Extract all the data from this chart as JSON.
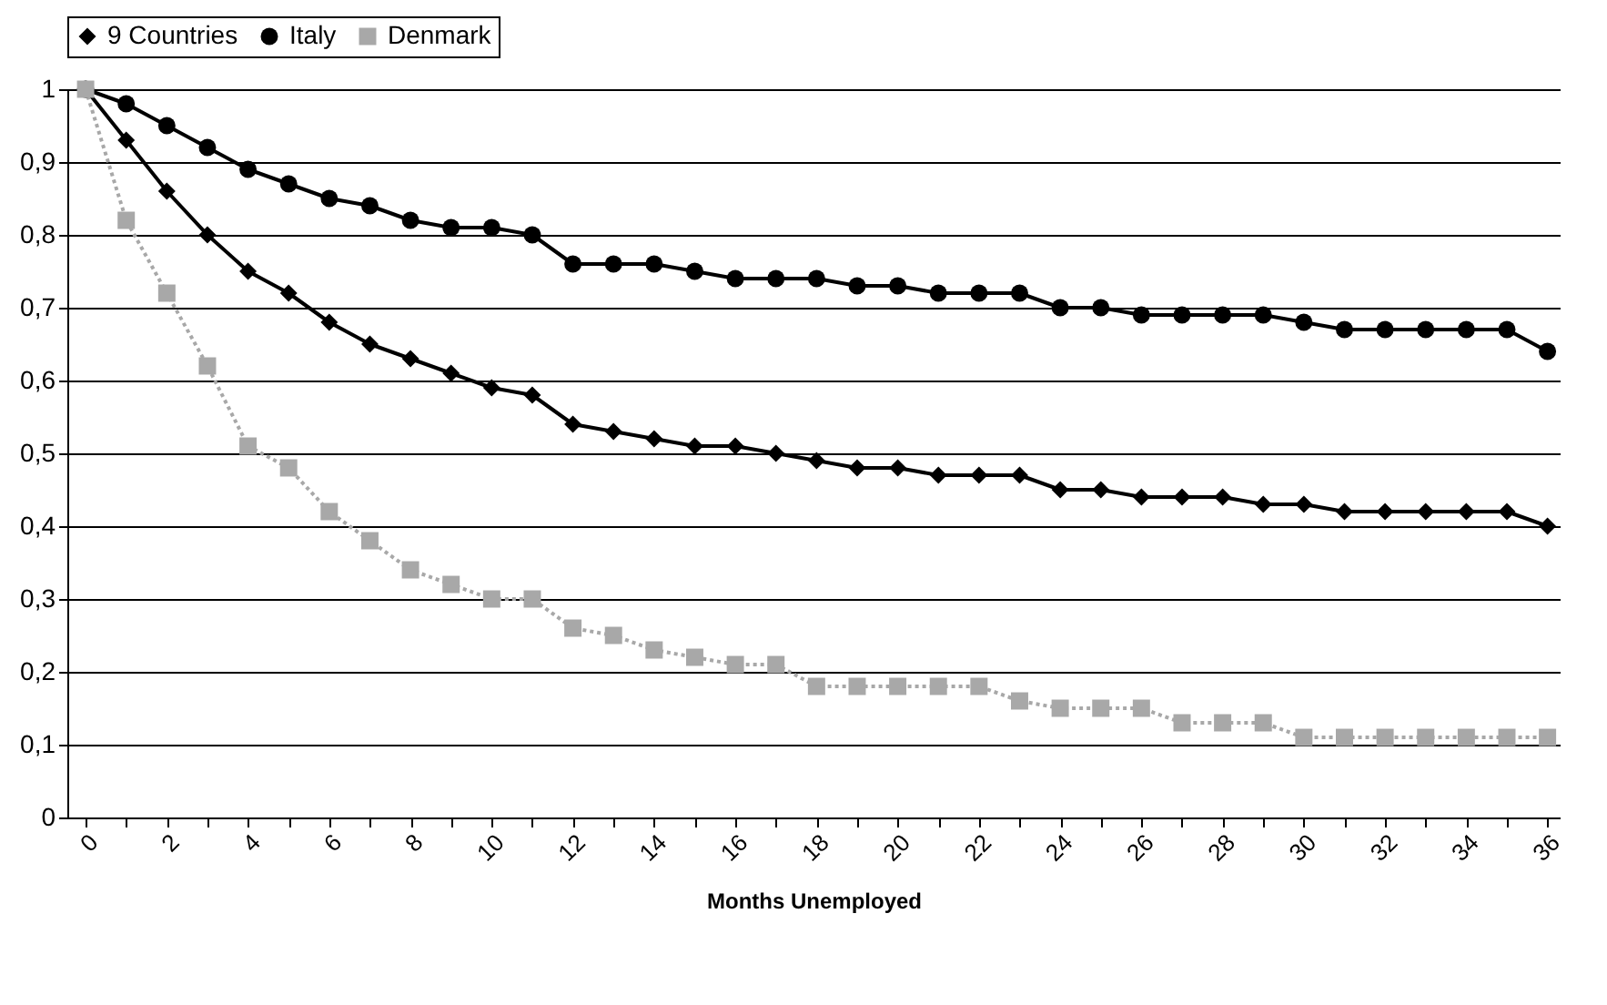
{
  "chart_data": {
    "type": "line",
    "xlabel": "Months Unemployed",
    "x": [
      0,
      1,
      2,
      3,
      4,
      5,
      6,
      7,
      8,
      9,
      10,
      11,
      12,
      13,
      14,
      15,
      16,
      17,
      18,
      19,
      20,
      21,
      22,
      23,
      24,
      25,
      26,
      27,
      28,
      29,
      30,
      31,
      32,
      33,
      34,
      35,
      36
    ],
    "series": [
      {
        "name": "9 Countries",
        "color": "#000000",
        "marker": "diamond",
        "line_style": "solid",
        "values": [
          1.0,
          0.93,
          0.86,
          0.8,
          0.75,
          0.72,
          0.68,
          0.65,
          0.63,
          0.61,
          0.59,
          0.58,
          0.54,
          0.53,
          0.52,
          0.51,
          0.51,
          0.5,
          0.49,
          0.48,
          0.48,
          0.47,
          0.47,
          0.47,
          0.45,
          0.45,
          0.44,
          0.44,
          0.44,
          0.43,
          0.43,
          0.42,
          0.42,
          0.42,
          0.42,
          0.42,
          0.4
        ]
      },
      {
        "name": "Italy",
        "color": "#000000",
        "marker": "circle",
        "line_style": "solid",
        "values": [
          1.0,
          0.98,
          0.95,
          0.92,
          0.89,
          0.87,
          0.85,
          0.84,
          0.82,
          0.81,
          0.81,
          0.8,
          0.76,
          0.76,
          0.76,
          0.75,
          0.74,
          0.74,
          0.74,
          0.73,
          0.73,
          0.72,
          0.72,
          0.72,
          0.7,
          0.7,
          0.69,
          0.69,
          0.69,
          0.69,
          0.68,
          0.67,
          0.67,
          0.67,
          0.67,
          0.67,
          0.64
        ]
      },
      {
        "name": "Denmark",
        "color": "#a8a8a8",
        "marker": "square",
        "line_style": "dotted",
        "values": [
          1.0,
          0.82,
          0.72,
          0.62,
          0.51,
          0.48,
          0.42,
          0.38,
          0.34,
          0.32,
          0.3,
          0.3,
          0.26,
          0.25,
          0.23,
          0.22,
          0.21,
          0.21,
          0.18,
          0.18,
          0.18,
          0.18,
          0.18,
          0.16,
          0.15,
          0.15,
          0.15,
          0.13,
          0.13,
          0.13,
          0.11,
          0.11,
          0.11,
          0.11,
          0.11,
          0.11,
          0.11
        ]
      }
    ],
    "xlim": [
      -0.45,
      36.3
    ],
    "xticks": [
      0,
      {
        "value": 1,
        "label": null
      },
      2,
      {
        "value": 3,
        "label": null
      },
      4,
      {
        "value": 5,
        "label": null
      },
      6,
      {
        "value": 7,
        "label": null
      },
      8,
      {
        "value": 9,
        "label": null
      },
      10,
      {
        "value": 11,
        "label": null
      },
      12,
      {
        "value": 13,
        "label": null
      },
      14,
      {
        "value": 15,
        "label": null
      },
      16,
      {
        "value": 17,
        "label": null
      },
      18,
      {
        "value": 19,
        "label": null
      },
      20,
      {
        "value": 21,
        "label": null
      },
      22,
      {
        "value": 23,
        "label": null
      },
      24,
      {
        "value": 25,
        "label": null
      },
      26,
      {
        "value": 27,
        "label": null
      },
      28,
      {
        "value": 29,
        "label": null
      },
      30,
      {
        "value": 31,
        "label": null
      },
      32,
      {
        "value": 33,
        "label": null
      },
      34,
      {
        "value": 35,
        "label": null
      },
      36
    ],
    "ylim": [
      0,
      1
    ],
    "yticks": [
      0,
      {
        "value": 0.1,
        "label": "0,1"
      },
      {
        "value": 0.2,
        "label": "0,2"
      },
      {
        "value": 0.3,
        "label": "0,3"
      },
      {
        "value": 0.4,
        "label": "0,4"
      },
      {
        "value": 0.5,
        "label": "0,5"
      },
      {
        "value": 0.6,
        "label": "0,6"
      },
      {
        "value": 0.7,
        "label": "0,7"
      },
      {
        "value": 0.8,
        "label": "0,8"
      },
      {
        "value": 0.9,
        "label": "0,9"
      },
      1
    ],
    "grid": "y",
    "legend": "top"
  }
}
